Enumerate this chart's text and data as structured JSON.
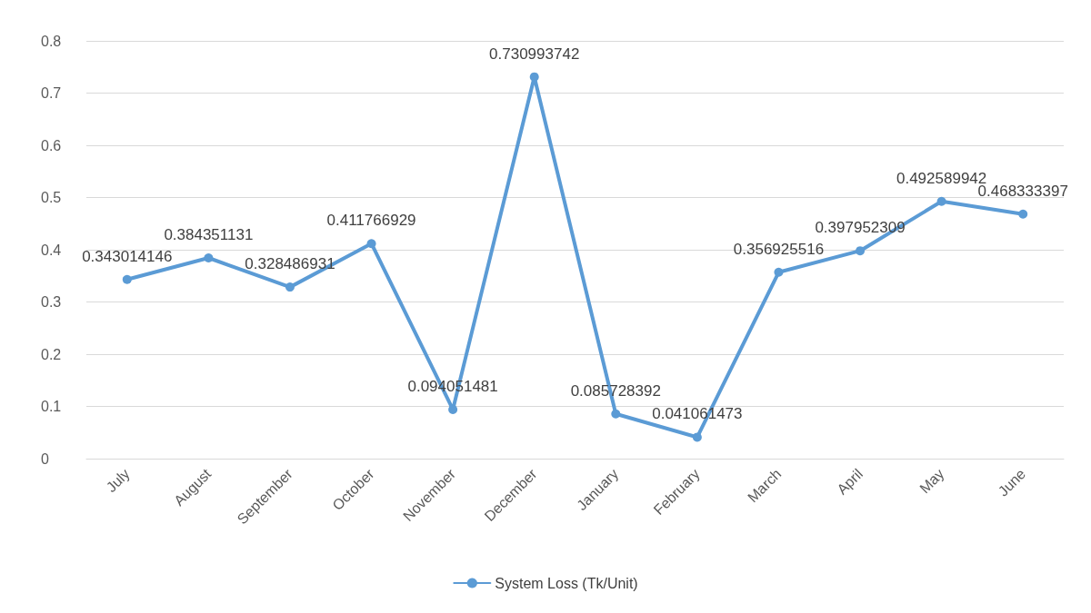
{
  "chart_data": {
    "type": "line",
    "categories": [
      "July",
      "August",
      "September",
      "October",
      "November",
      "December",
      "January",
      "February",
      "March",
      "April",
      "May",
      "June"
    ],
    "series": [
      {
        "name": "System Loss (Tk/Unit)",
        "color": "#5b9bd5",
        "values": [
          0.343014146,
          0.384351131,
          0.328486931,
          0.411766929,
          0.094051481,
          0.730993742,
          0.085728392,
          0.041061473,
          0.356925516,
          0.397952309,
          0.492589942,
          0.468333397
        ]
      }
    ],
    "ylim": [
      0,
      0.8
    ],
    "yticks": [
      0,
      0.1,
      0.2,
      0.3,
      0.4,
      0.5,
      0.6,
      0.7,
      0.8
    ],
    "grid": "y",
    "legend": "bottom",
    "marker": "circle",
    "line_style": "solid",
    "data_labels": true
  }
}
